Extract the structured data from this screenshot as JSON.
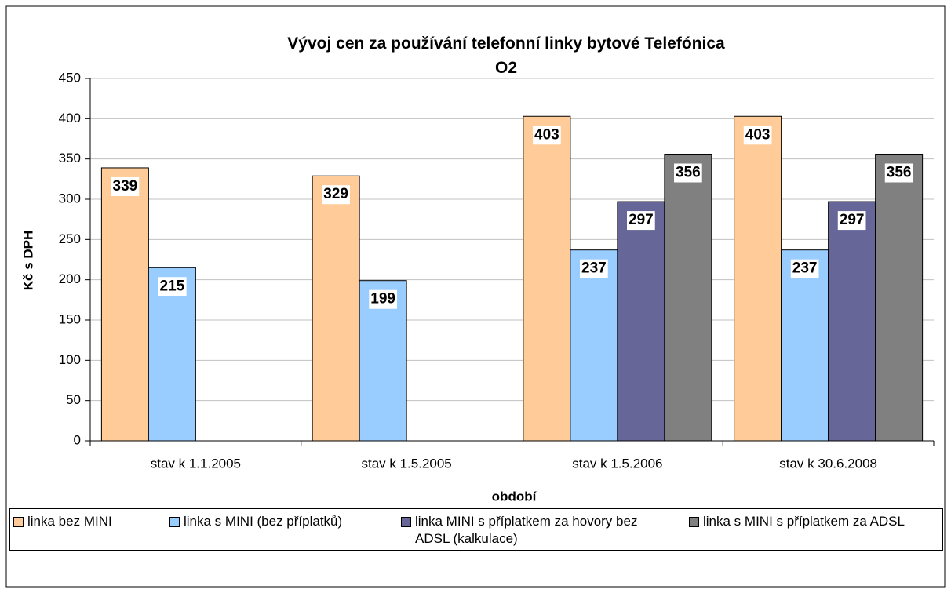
{
  "chart_data": {
    "type": "bar",
    "title": "Vývoj cen za používání telefonní linky bytové Telefónica O2",
    "x_label": "období",
    "y_label": "Kč s DPH",
    "categories": [
      "stav k 1.1.2005",
      "stav k 1.5.2005",
      "stav k 1.5.2006",
      "stav k 30.6.2008"
    ],
    "series": [
      {
        "name": "linka bez MINI",
        "color": "#FFCC99",
        "values": [
          339,
          329,
          403,
          403
        ]
      },
      {
        "name": "linka s MINI (bez příplatků)",
        "color": "#99CCFF",
        "values": [
          215,
          199,
          237,
          237
        ]
      },
      {
        "name": "linka MINI s příplatkem za hovory bez ADSL (kalkulace)",
        "color": "#666699",
        "values": [
          null,
          null,
          297,
          297
        ]
      },
      {
        "name": "linka s MINI s příplatkem za ADSL",
        "color": "#808080",
        "values": [
          null,
          null,
          356,
          356
        ]
      }
    ],
    "ylim": [
      0,
      450
    ],
    "yticks": [
      0,
      50,
      100,
      150,
      200,
      250,
      300,
      350,
      400,
      450
    ],
    "grid": true,
    "legend": "bottom"
  }
}
